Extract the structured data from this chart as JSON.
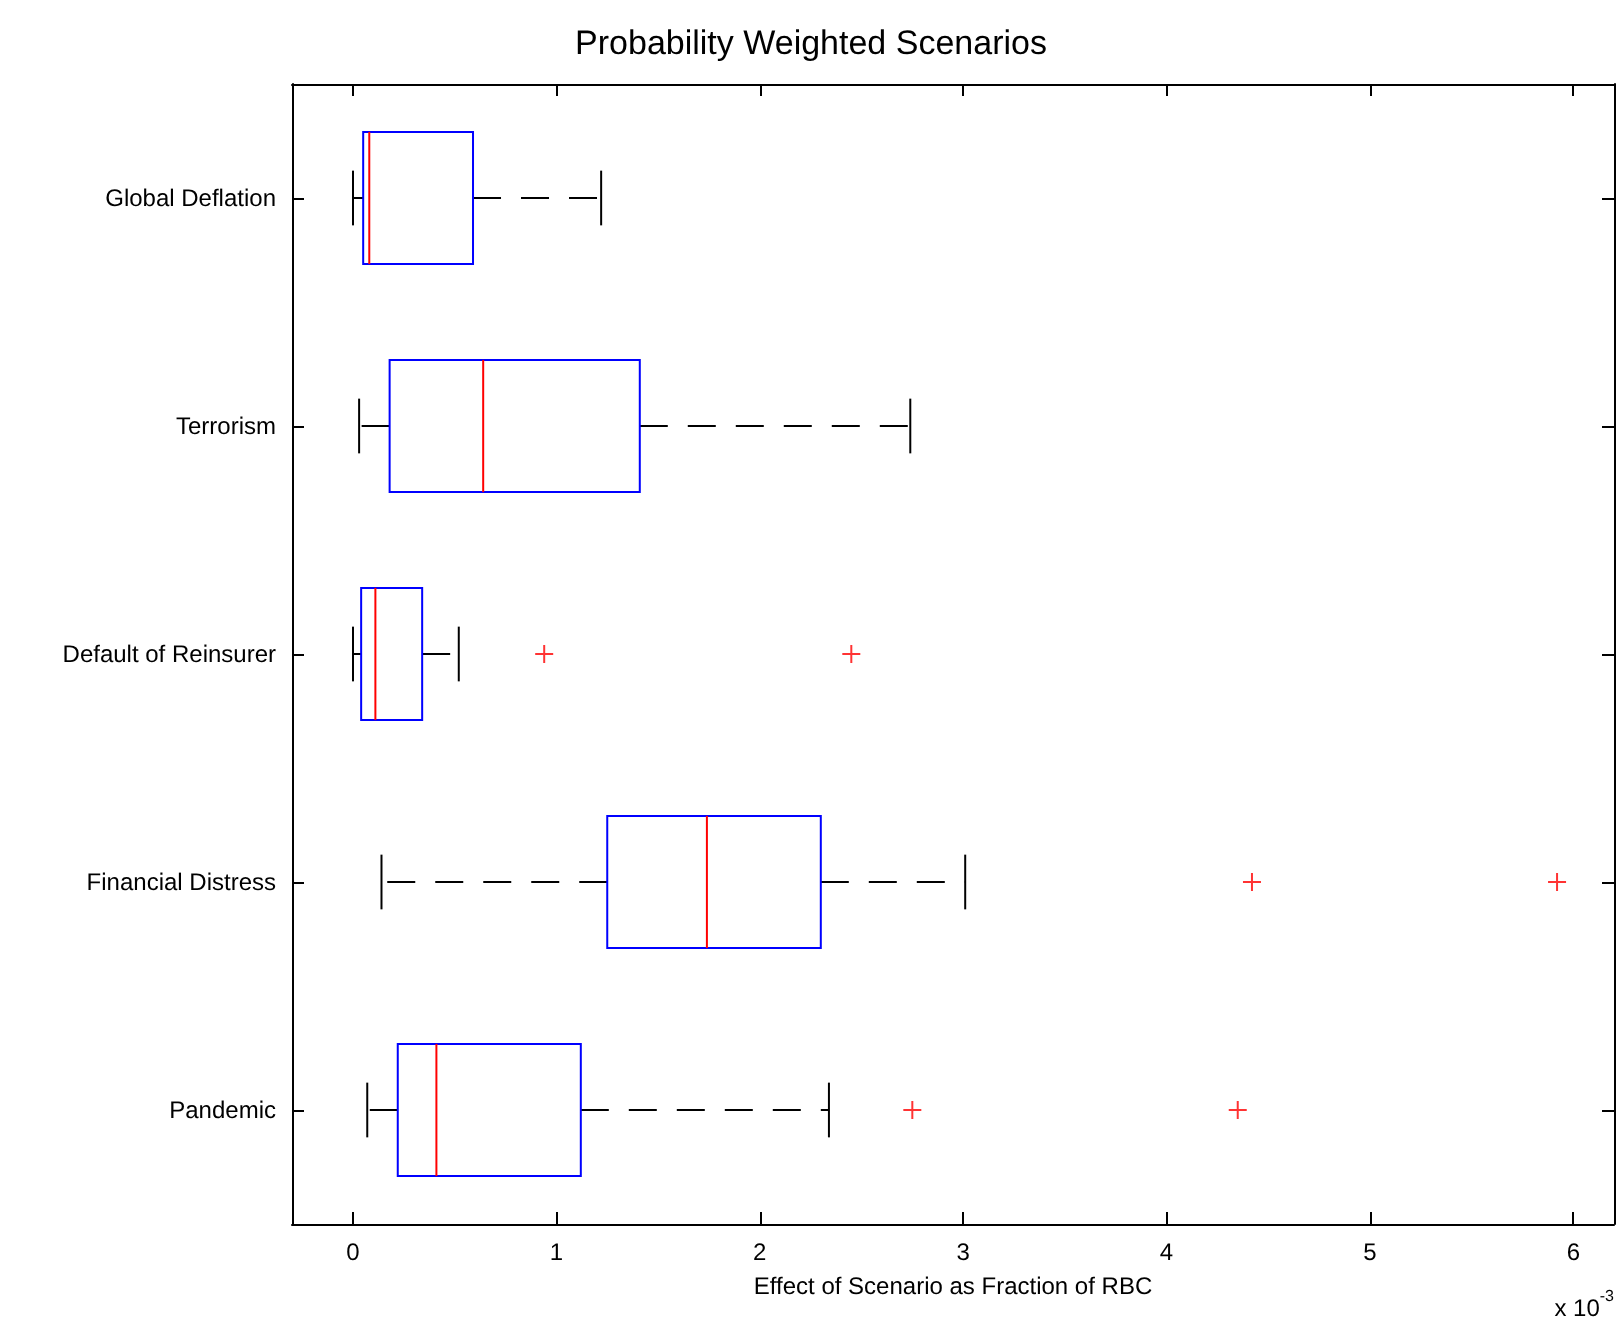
{
  "chart_data": {
    "type": "box",
    "orientation": "horizontal",
    "title": "Probability Weighted Scenarios",
    "xlabel": "Effect of Scenario as Fraction of RBC",
    "annotations": [
      "x 10$^{-3}$"
    ],
    "categories": [
      "Global Deflation",
      "Terrorism",
      "Default of Reinsurer",
      "Financial Distress",
      "Pandemic"
    ],
    "series": [
      {
        "color": "#0000ff",
        "boxes": [
          {
            "low": 0,
            "q1": 0.05,
            "median": 0.08,
            "q3": 0.59,
            "high": 1.22
          },
          {
            "low": 0.03,
            "q1": 0.18,
            "median": 0.64,
            "q3": 1.41,
            "high": 2.74
          },
          {
            "low": 0,
            "q1": 0.04,
            "median": 0.11,
            "q3": 0.34,
            "high": 0.52,
            "outliers": [
              0.94,
              2.45
            ]
          },
          {
            "low": 0.14,
            "q1": 1.25,
            "median": 1.74,
            "q3": 2.3,
            "high": 3.01,
            "outliers": [
              4.42,
              5.92
            ]
          },
          {
            "low": 0.07,
            "q1": 0.22,
            "median": 0.41,
            "q3": 1.12,
            "high": 2.34,
            "outliers": [
              2.75,
              4.35
            ]
          }
        ]
      }
    ],
    "xlim": [
      -0.3,
      6.2
    ],
    "xticks": [
      0,
      1,
      2,
      3,
      4,
      5,
      6
    ],
    "grid": false,
    "marker": "cross"
  }
}
